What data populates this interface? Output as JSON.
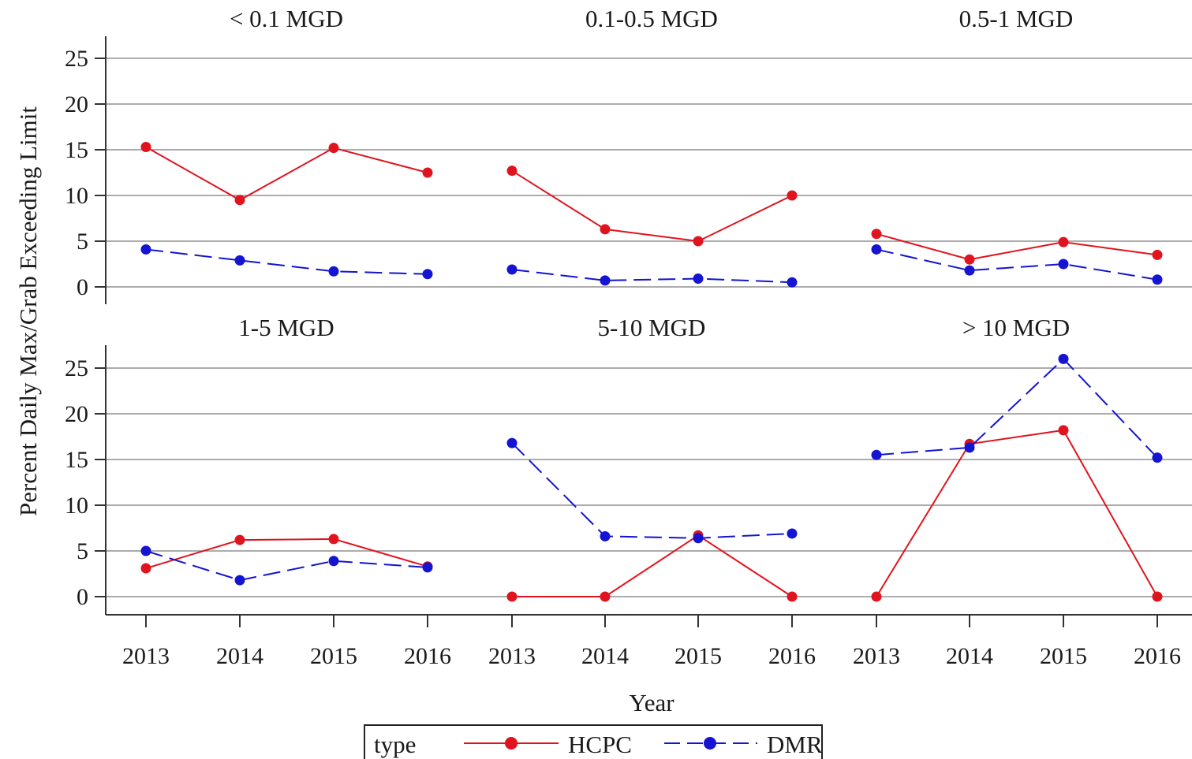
{
  "chart_data": {
    "type": "line",
    "ylabel": "Percent  Daily Max/Grab Exceeding Limit",
    "xlabel": "Year",
    "x": [
      "2013",
      "2014",
      "2015",
      "2016"
    ],
    "ylim": [
      0,
      25
    ],
    "yticks": [
      0,
      5,
      10,
      15,
      20,
      25
    ],
    "grid": true,
    "legend": {
      "title": "type",
      "placement": "bottom",
      "entries": [
        "HCPC",
        "DMR"
      ]
    },
    "colors": {
      "HCPC": "#e0141e",
      "DMR": "#1414d2",
      "grid": "#7a7a7a",
      "axis": "#333333"
    },
    "panels": [
      {
        "title": "< 0.1 MGD",
        "series": [
          {
            "name": "HCPC",
            "values": [
              15.3,
              9.5,
              15.2,
              12.5
            ]
          },
          {
            "name": "DMR",
            "values": [
              4.1,
              2.9,
              1.7,
              1.4
            ]
          }
        ]
      },
      {
        "title": "0.1-0.5 MGD",
        "series": [
          {
            "name": "HCPC",
            "values": [
              12.7,
              6.3,
              5.0,
              10.0
            ]
          },
          {
            "name": "DMR",
            "values": [
              1.9,
              0.7,
              0.9,
              0.5
            ]
          }
        ]
      },
      {
        "title": "0.5-1 MGD",
        "series": [
          {
            "name": "HCPC",
            "values": [
              5.8,
              3.0,
              4.9,
              3.5
            ]
          },
          {
            "name": "DMR",
            "values": [
              4.1,
              1.8,
              2.5,
              0.8
            ]
          }
        ]
      },
      {
        "title": "1-5 MGD",
        "series": [
          {
            "name": "HCPC",
            "values": [
              3.1,
              6.2,
              6.3,
              3.3
            ]
          },
          {
            "name": "DMR",
            "values": [
              5.0,
              1.8,
              3.9,
              3.2
            ]
          }
        ]
      },
      {
        "title": "5-10 MGD",
        "series": [
          {
            "name": "HCPC",
            "values": [
              0.0,
              0.0,
              6.7,
              0.0
            ]
          },
          {
            "name": "DMR",
            "values": [
              16.8,
              6.6,
              6.4,
              6.9
            ]
          }
        ]
      },
      {
        "title": "> 10 MGD",
        "series": [
          {
            "name": "HCPC",
            "values": [
              0.0,
              16.7,
              18.2,
              0.0
            ]
          },
          {
            "name": "DMR",
            "values": [
              15.5,
              16.3,
              26.0,
              15.2
            ]
          }
        ]
      }
    ]
  }
}
